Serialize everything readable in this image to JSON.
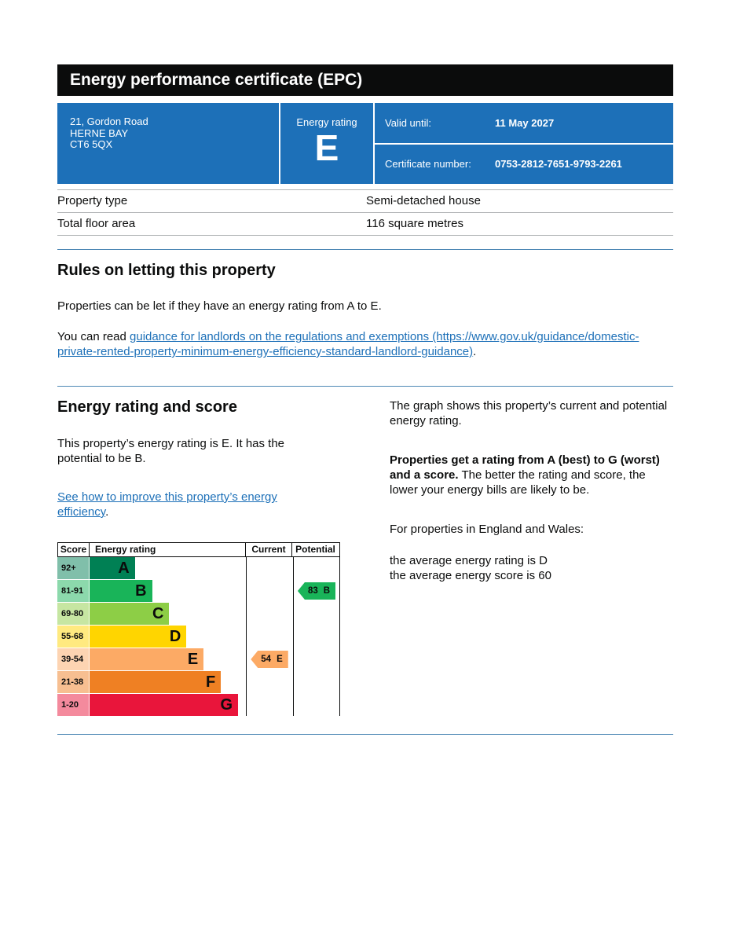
{
  "header": {
    "title": "Energy performance certificate (EPC)"
  },
  "colors": {
    "title_bar": "#0b0c0c",
    "banner_blue": "#1d70b8",
    "link_blue": "#1d70b8",
    "divider_blue": "#4e88b5",
    "table_hairline": "#b1b4b6"
  },
  "summary_banner": {
    "address_lines": [
      "21, Gordon Road",
      "HERNE BAY",
      "CT6 5QX"
    ],
    "rating_label": "Energy rating",
    "rating_value": "E",
    "rows": [
      {
        "label": "Valid until:",
        "value": "11 May 2027"
      },
      {
        "label": "Certificate number:",
        "value": "0753-2812-7651-9793-2261"
      }
    ]
  },
  "property_details": {
    "rows": [
      {
        "label": "Property type",
        "value": "Semi-detached house"
      },
      {
        "label": "Total floor area",
        "value": "116 square metres"
      }
    ]
  },
  "rules_section": {
    "heading": "Rules on letting this property",
    "paragraph": "Properties can be let if they have an energy rating from A to E.",
    "read_prefix": "You can read ",
    "guidance_link": "guidance for landlords on the regulations and exemptions (https://www.gov.uk/guidance/domestic-private-rented-property-minimum-energy-efficiency-standard-landlord-guidance)",
    "read_suffix": "."
  },
  "rating_section": {
    "heading": "Energy rating and score",
    "summary": "This property’s energy rating is E. It has the potential to be B.",
    "improve_link": "See how to improve this property’s energy efficiency",
    "improve_suffix": ".",
    "graph_intro": "The graph shows this property’s current and potential energy rating.",
    "explain_bold": "Properties get a rating from A (best) to G (worst) and a score.",
    "explain_rest": " The better the rating and score, the lower your energy bills are likely to be.",
    "england_wales": "For properties in England and Wales:",
    "average_rating": "the average energy rating is D",
    "average_score": "the average energy score is 60"
  },
  "chart_data": {
    "type": "bar",
    "subtype": "epc-rating-bands",
    "headers": [
      "Score",
      "Energy rating",
      "Current",
      "Potential"
    ],
    "bands": [
      {
        "score": "92+",
        "letter": "A",
        "color": "#008054",
        "tint": "#80bfaa",
        "width_pct": 29
      },
      {
        "score": "81-91",
        "letter": "B",
        "color": "#19b459",
        "tint": "#8cd9ac",
        "width_pct": 40
      },
      {
        "score": "69-80",
        "letter": "C",
        "color": "#8dce46",
        "tint": "#c6e6a2",
        "width_pct": 51
      },
      {
        "score": "55-68",
        "letter": "D",
        "color": "#ffd500",
        "tint": "#ffea80",
        "width_pct": 62
      },
      {
        "score": "39-54",
        "letter": "E",
        "color": "#fcaa65",
        "tint": "#fdd4b2",
        "width_pct": 73
      },
      {
        "score": "21-38",
        "letter": "F",
        "color": "#ef8023",
        "tint": "#f7bf91",
        "width_pct": 84
      },
      {
        "score": "1-20",
        "letter": "G",
        "color": "#e9153b",
        "tint": "#f48a9d",
        "width_pct": 95
      }
    ],
    "current": {
      "score": 54,
      "letter": "E",
      "band_index": 4,
      "color": "#fcaa65"
    },
    "potential": {
      "score": 83,
      "letter": "B",
      "band_index": 1,
      "color": "#19b459"
    }
  }
}
